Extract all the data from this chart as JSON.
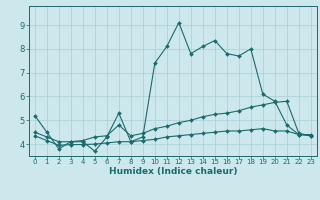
{
  "xlabel": "Humidex (Indice chaleur)",
  "xlim": [
    -0.5,
    23.5
  ],
  "ylim": [
    3.5,
    9.8
  ],
  "yticks": [
    4,
    5,
    6,
    7,
    8,
    9
  ],
  "xticks": [
    0,
    1,
    2,
    3,
    4,
    5,
    6,
    7,
    8,
    9,
    10,
    11,
    12,
    13,
    14,
    15,
    16,
    17,
    18,
    19,
    20,
    21,
    22,
    23
  ],
  "color": "#1a6b6b",
  "bg_color": "#cce8ed",
  "grid_color": "#aacdd4",
  "line1_x": [
    0,
    1,
    2,
    3,
    4,
    5,
    6,
    7,
    8,
    9,
    10,
    11,
    12,
    13,
    14,
    15,
    16,
    17,
    18,
    19,
    20,
    21,
    22,
    23
  ],
  "line1_y": [
    5.2,
    4.5,
    3.8,
    4.1,
    4.1,
    3.7,
    4.3,
    5.3,
    4.1,
    4.3,
    7.4,
    8.1,
    9.1,
    7.8,
    8.1,
    8.35,
    7.8,
    7.7,
    8.0,
    6.1,
    5.8,
    4.8,
    4.4,
    4.4
  ],
  "line2_x": [
    0,
    1,
    2,
    3,
    4,
    5,
    6,
    7,
    8,
    9,
    10,
    11,
    12,
    13,
    14,
    15,
    16,
    17,
    18,
    19,
    20,
    21,
    22,
    23
  ],
  "line2_y": [
    4.5,
    4.3,
    4.1,
    4.1,
    4.15,
    4.3,
    4.35,
    4.8,
    4.35,
    4.45,
    4.65,
    4.75,
    4.9,
    5.0,
    5.15,
    5.25,
    5.3,
    5.4,
    5.55,
    5.65,
    5.75,
    5.8,
    4.45,
    4.35
  ],
  "line3_x": [
    0,
    1,
    2,
    3,
    4,
    5,
    6,
    7,
    8,
    9,
    10,
    11,
    12,
    13,
    14,
    15,
    16,
    17,
    18,
    19,
    20,
    21,
    22,
    23
  ],
  "line3_y": [
    4.35,
    4.15,
    3.95,
    3.98,
    3.98,
    4.0,
    4.05,
    4.1,
    4.1,
    4.15,
    4.2,
    4.3,
    4.35,
    4.4,
    4.45,
    4.5,
    4.55,
    4.55,
    4.6,
    4.65,
    4.55,
    4.55,
    4.4,
    4.35
  ]
}
